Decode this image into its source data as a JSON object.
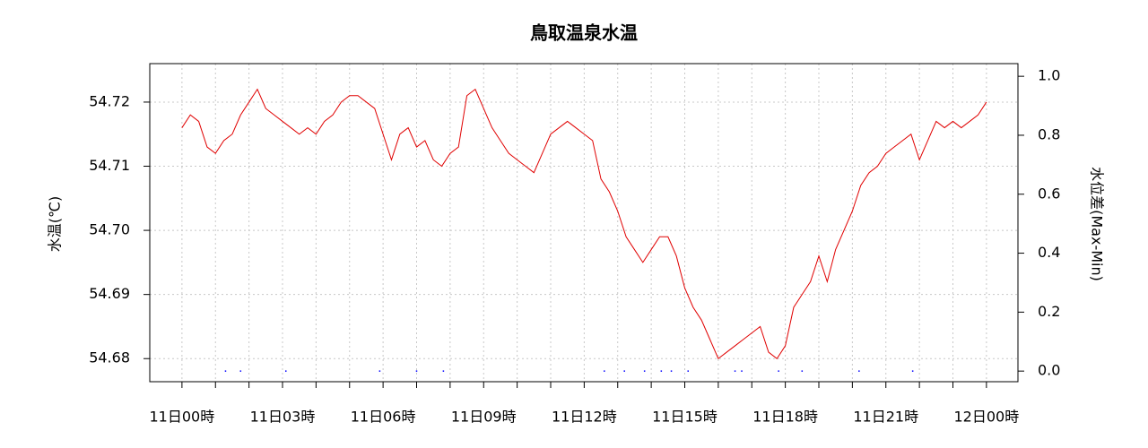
{
  "chart_data": {
    "type": "line",
    "title": "鳥取温泉水温",
    "ylabel": "水温(℃)",
    "y2label": "水位差(Max-Min)",
    "xlim": [
      -0.96,
      24.94
    ],
    "xticks": [
      {
        "value": 0,
        "label": "11日00時"
      },
      {
        "value": 3,
        "label": "11日03時"
      },
      {
        "value": 6,
        "label": "11日06時"
      },
      {
        "value": 9,
        "label": "11日09時"
      },
      {
        "value": 12,
        "label": "11日12時"
      },
      {
        "value": 15,
        "label": "11日15時"
      },
      {
        "value": 18,
        "label": "11日18時"
      },
      {
        "value": 21,
        "label": "11日21時"
      },
      {
        "value": 24,
        "label": "12日00時"
      }
    ],
    "xminor_ticks": [
      1,
      2,
      4,
      5,
      7,
      8,
      10,
      11,
      13,
      14,
      16,
      17,
      19,
      20,
      22,
      23
    ],
    "ylim": [
      54.6764,
      54.726
    ],
    "yticks": [
      54.68,
      54.69,
      {
        "value": 54.7,
        "label": "54.70"
      },
      54.71,
      54.72
    ],
    "y2lim": [
      -0.036,
      1.043
    ],
    "y2ticks": [
      {
        "value": 0,
        "label": "0.0"
      },
      0.2,
      0.4,
      0.6,
      0.8,
      {
        "value": 1,
        "label": "1.0"
      }
    ],
    "grid": true,
    "series": [
      {
        "color": "#e00000",
        "x": [
          0,
          0.25,
          0.5,
          0.75,
          1,
          1.25,
          1.5,
          1.75,
          2,
          2.25,
          2.5,
          2.75,
          3,
          3.25,
          3.5,
          3.75,
          4,
          4.25,
          4.5,
          4.75,
          5,
          5.25,
          5.5,
          5.75,
          6,
          6.25,
          6.5,
          6.75,
          7,
          7.25,
          7.5,
          7.75,
          8,
          8.25,
          8.5,
          8.75,
          9,
          9.25,
          9.5,
          9.75,
          10,
          10.25,
          10.5,
          10.75,
          11,
          11.25,
          11.5,
          11.75,
          12,
          12.25,
          12.5,
          12.75,
          13,
          13.25,
          13.5,
          13.75,
          14,
          14.25,
          14.5,
          14.75,
          15,
          15.25,
          15.5,
          15.75,
          16,
          16.25,
          16.5,
          16.75,
          17,
          17.25,
          17.5,
          17.75,
          18,
          18.25,
          18.5,
          18.75,
          19,
          19.25,
          19.5,
          19.75,
          20,
          20.25,
          20.5,
          20.75,
          21,
          21.25,
          21.5,
          21.75,
          22,
          22.25,
          22.5,
          22.75,
          23,
          23.25,
          23.5,
          23.75,
          24
        ],
        "values": [
          54.716,
          54.718,
          54.717,
          54.713,
          54.712,
          54.714,
          54.715,
          54.718,
          54.72,
          54.722,
          54.719,
          54.718,
          54.717,
          54.716,
          54.715,
          54.716,
          54.715,
          54.717,
          54.718,
          54.72,
          54.721,
          54.721,
          54.72,
          54.719,
          54.715,
          54.711,
          54.715,
          54.716,
          54.713,
          54.714,
          54.711,
          54.71,
          54.712,
          54.713,
          54.721,
          54.722,
          54.719,
          54.716,
          54.714,
          54.712,
          54.711,
          54.71,
          54.709,
          54.712,
          54.715,
          54.716,
          54.717,
          54.716,
          54.715,
          54.714,
          54.708,
          54.706,
          54.703,
          54.699,
          54.697,
          54.695,
          54.697,
          54.699,
          54.699,
          54.696,
          54.691,
          54.688,
          54.686,
          54.683,
          54.68,
          54.681,
          54.682,
          54.683,
          54.684,
          54.685,
          54.681,
          54.68,
          54.682,
          54.688,
          54.69,
          54.692,
          54.696,
          54.692,
          54.697,
          54.7,
          54.703,
          54.707,
          54.709,
          54.71,
          54.712,
          54.713,
          54.714,
          54.715,
          54.711,
          54.714,
          54.717,
          54.716,
          54.717,
          54.716,
          54.717,
          54.718,
          54.72
        ]
      },
      {
        "color": "#0000ff",
        "axis": "y2",
        "x": [
          1.3,
          1.75,
          3.1,
          5.9,
          7.0,
          7.8,
          12.6,
          13.2,
          13.8,
          14.3,
          14.6,
          15.1,
          16.5,
          16.7,
          17.8,
          18.5,
          20.2,
          21.8
        ],
        "values": [
          0,
          0,
          0,
          0,
          0,
          0,
          0,
          0,
          0,
          0,
          0,
          0,
          0,
          0,
          0,
          0,
          0,
          0
        ]
      }
    ]
  }
}
